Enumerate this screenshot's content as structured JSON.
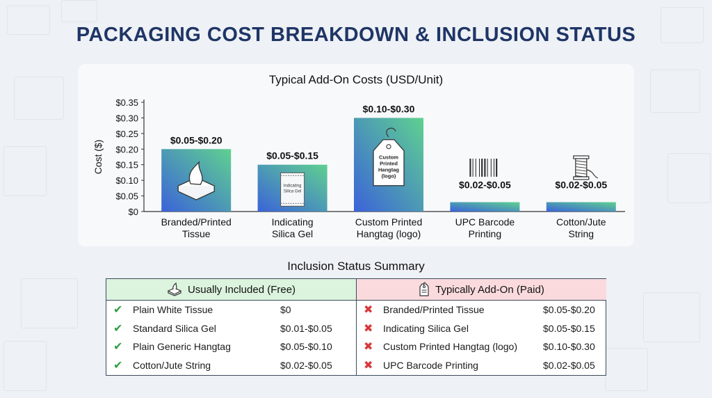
{
  "title": "PACKAGING COST BREAKDOWN & INCLUSION STATUS",
  "chart_data": {
    "type": "bar",
    "title": "Typical Add-On Costs (USD/Unit)",
    "ylabel": "Cost ($)",
    "xlabel": "",
    "ylim": [
      0,
      0.35
    ],
    "yticks": [
      0,
      0.05,
      0.1,
      0.15,
      0.2,
      0.25,
      0.3,
      0.35
    ],
    "ytick_labels": [
      "$0",
      "$0.05",
      "$0.10",
      "$0.15",
      "$0.20",
      "$0.25",
      "$0.30",
      "$0.35"
    ],
    "categories": [
      "Branded/Printed Tissue",
      "Indicating Silica Gel",
      "Custom Printed Hangtag (logo)",
      "UPC Barcode Printing",
      "Cotton/Jute String"
    ],
    "category_lines": [
      [
        "Branded/Printed",
        "Tissue"
      ],
      [
        "Indicating",
        "Silica Gel"
      ],
      [
        "Custom Printed",
        "Hangtag (logo)"
      ],
      [
        "UPC Barcode",
        "Printing"
      ],
      [
        "Cotton/Jute",
        "String"
      ]
    ],
    "values": [
      0.2,
      0.15,
      0.3,
      0.03,
      0.03
    ],
    "data_labels": [
      "$0.05-$0.20",
      "$0.05-$0.15",
      "$0.10-$0.30",
      "$0.02-$0.05",
      "$0.02-$0.05"
    ],
    "icons": [
      "tissue-box-icon",
      "silica-gel-packet-icon",
      "hangtag-icon",
      "barcode-icon",
      "string-spool-icon"
    ],
    "icon_texts": {
      "silica": [
        "Indicating",
        "Silica Gel"
      ],
      "hangtag": [
        "Custom",
        "Printed",
        "Hangtag",
        "(logo)"
      ]
    },
    "grid": false,
    "bar_gradient": [
      "#3b63d9",
      "#5fd190"
    ]
  },
  "summary": {
    "title": "Inclusion Status Summary",
    "included": {
      "header": "Usually Included (Free)",
      "icon": "tissue-box-icon",
      "items": [
        {
          "name": "Plain White Tissue",
          "value": "$0"
        },
        {
          "name": "Standard Silica Gel",
          "value": "$0.01-$0.05"
        },
        {
          "name": "Plain Generic Hangtag",
          "value": "$0.05-$0.10"
        },
        {
          "name": "Cotton/Jute String",
          "value": "$0.02-$0.05"
        }
      ]
    },
    "addon": {
      "header": "Typically Add-On (Paid)",
      "icon": "hangtag-icon",
      "items": [
        {
          "name": "Branded/Printed Tissue",
          "value": "$0.05-$0.20"
        },
        {
          "name": "Indicating Silica Gel",
          "value": "$0.05-$0.15"
        },
        {
          "name": "Custom Printed Hangtag (logo)",
          "value": "$0.10-$0.30"
        },
        {
          "name": "UPC Barcode Printing",
          "value": "$0.02-$0.05"
        }
      ]
    }
  }
}
